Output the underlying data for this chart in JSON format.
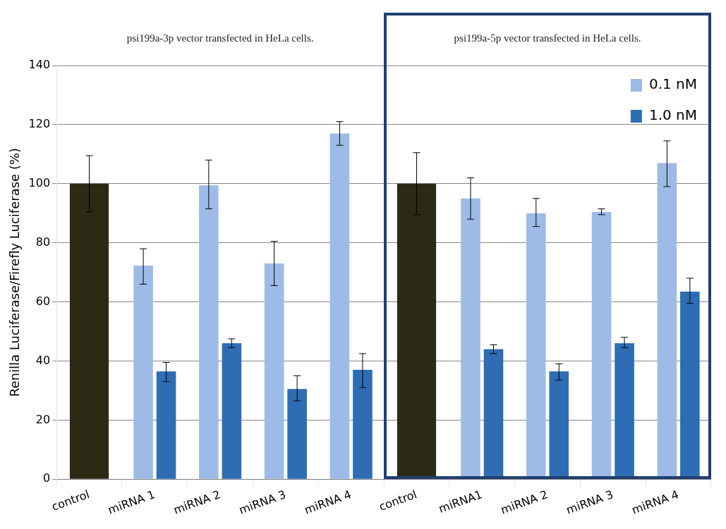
{
  "chart_data": {
    "type": "bar",
    "ylabel": "Renilla Luciferase/Firefly Luciferase (%)",
    "annotations": [
      "psi199a-3p vector transfected in HeLa cells.",
      "psi199a-5p vector transfected in HeLa cells."
    ],
    "categories": [
      "control",
      "miRNA 1",
      "miRNA 2",
      "miRNA 3",
      "miRNA 4",
      "control",
      "miRNA1",
      "miRNA 2",
      "miRNA 3",
      "miRNA 4"
    ],
    "series": [
      {
        "color": "#2b2a14",
        "values": [
          100,
          null,
          null,
          null,
          null,
          100,
          null,
          null,
          null,
          null
        ],
        "errors": [
          [
            90.5,
            109.5
          ],
          null,
          null,
          null,
          null,
          [
            89.5,
            110.5
          ],
          null,
          null,
          null,
          null
        ]
      },
      {
        "name": "0.1 nM",
        "color": "#9dbbe6",
        "values": [
          null,
          72.3,
          99.5,
          73,
          117,
          null,
          95,
          90,
          90.5,
          107
        ],
        "errors": [
          null,
          [
            66,
            78
          ],
          [
            91.5,
            108
          ],
          [
            65.5,
            80.5
          ],
          [
            113,
            121
          ],
          null,
          [
            88,
            102
          ],
          [
            85.5,
            95
          ],
          [
            89.5,
            91.5
          ],
          [
            99,
            114.5
          ]
        ]
      },
      {
        "name": "1.0 nM",
        "color": "#2e6db4",
        "values": [
          null,
          36.5,
          46,
          30.5,
          37,
          null,
          44,
          36.5,
          46,
          63.5
        ],
        "errors": [
          null,
          [
            33,
            39.5
          ],
          [
            44.5,
            47.5
          ],
          [
            26.5,
            35
          ],
          [
            31,
            42.5
          ],
          null,
          [
            42.5,
            45.5
          ],
          [
            33.5,
            39
          ],
          [
            44.5,
            48
          ],
          [
            59.5,
            68
          ]
        ]
      }
    ],
    "ylim": [
      0,
      140
    ],
    "yticks": [
      0,
      20,
      40,
      60,
      80,
      100,
      120,
      140
    ],
    "grid": "y",
    "legend": "top right"
  }
}
